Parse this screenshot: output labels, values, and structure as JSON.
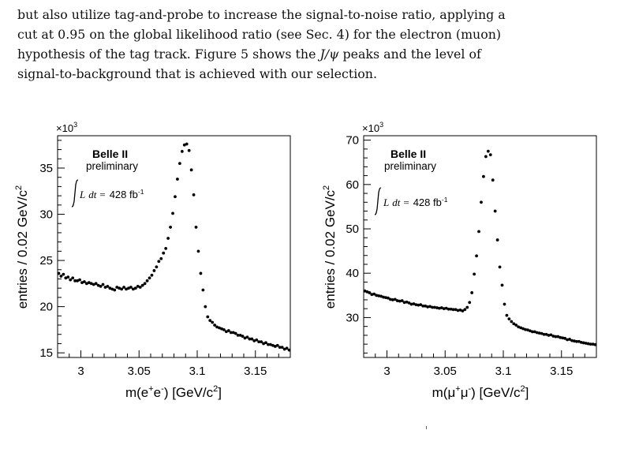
{
  "text": {
    "line1": "but also utilize tag-and-probe to increase the signal-to-noise ratio, applying a",
    "line2": "cut at 0.95 on the global likelihood ratio (see Sec. 4) for the electron (muon)",
    "line3_a": "hypothesis of the tag track. Figure 5 shows the ",
    "line3_jpsi": "J/ψ",
    "line3_b": " peaks and the level of",
    "line4": "signal-to-background that is achieved with our selection."
  },
  "chart_data": [
    {
      "type": "scatter",
      "title": "",
      "exponent_label": "×10",
      "exponent_sup": "3",
      "ylabel_main": "entries / 0.02 GeV/c",
      "ylabel_sup": "2",
      "xlabel_main": "m(e",
      "xlabel_sup1": "+",
      "xlabel_mid": "e",
      "xlabel_sup2": "-",
      "xlabel_end": ") [GeV/c",
      "xlabel_sup3": "2",
      "xlabel_close": "]",
      "experiment": "Belle II",
      "status": "preliminary",
      "lumi_L": "L",
      "lumi_dt": "dt",
      "lumi_eq": "=",
      "lumi_value": "428 fb",
      "lumi_sup": "-1",
      "xlim": [
        2.98,
        3.18
      ],
      "ylim": [
        14.5,
        38.5
      ],
      "xticks": [
        "3",
        "3.05",
        "3.1",
        "3.15"
      ],
      "xtick_values": [
        3.0,
        3.05,
        3.1,
        3.15
      ],
      "yticks": [
        "15",
        "20",
        "25",
        "30",
        "35"
      ],
      "ytick_values": [
        15,
        20,
        25,
        30,
        35
      ],
      "x": [
        2.981,
        2.983,
        2.985,
        2.987,
        2.989,
        2.991,
        2.993,
        2.995,
        2.997,
        2.999,
        3.001,
        3.003,
        3.005,
        3.007,
        3.009,
        3.011,
        3.013,
        3.015,
        3.017,
        3.019,
        3.021,
        3.023,
        3.025,
        3.027,
        3.029,
        3.031,
        3.033,
        3.035,
        3.037,
        3.039,
        3.041,
        3.043,
        3.045,
        3.047,
        3.049,
        3.051,
        3.053,
        3.055,
        3.057,
        3.059,
        3.061,
        3.063,
        3.065,
        3.067,
        3.069,
        3.071,
        3.073,
        3.075,
        3.077,
        3.079,
        3.081,
        3.083,
        3.085,
        3.087,
        3.089,
        3.091,
        3.093,
        3.095,
        3.097,
        3.099,
        3.101,
        3.103,
        3.105,
        3.107,
        3.109,
        3.111,
        3.113,
        3.115,
        3.117,
        3.119,
        3.121,
        3.123,
        3.125,
        3.127,
        3.129,
        3.131,
        3.133,
        3.135,
        3.137,
        3.139,
        3.141,
        3.143,
        3.145,
        3.147,
        3.149,
        3.151,
        3.153,
        3.155,
        3.157,
        3.159,
        3.161,
        3.163,
        3.165,
        3.167,
        3.169,
        3.171,
        3.173,
        3.175,
        3.177,
        3.179
      ],
      "y": [
        23.6,
        23.3,
        23.5,
        23.1,
        23.2,
        22.9,
        23.1,
        22.8,
        22.8,
        22.9,
        22.6,
        22.7,
        22.5,
        22.6,
        22.5,
        22.4,
        22.5,
        22.3,
        22.2,
        22.4,
        22.1,
        22.2,
        22.0,
        21.9,
        21.8,
        22.1,
        22.0,
        21.9,
        22.1,
        21.9,
        22.0,
        22.1,
        21.9,
        22.0,
        22.2,
        22.1,
        22.3,
        22.5,
        22.8,
        23.1,
        23.4,
        23.9,
        24.3,
        24.9,
        25.2,
        25.8,
        26.3,
        27.4,
        28.6,
        30.1,
        31.9,
        33.8,
        35.5,
        36.8,
        37.5,
        37.6,
        36.9,
        34.8,
        32.1,
        28.6,
        26.0,
        23.6,
        21.8,
        20.0,
        18.9,
        18.5,
        18.3,
        18.0,
        17.8,
        17.7,
        17.6,
        17.5,
        17.3,
        17.4,
        17.2,
        17.2,
        17.1,
        16.9,
        16.9,
        16.8,
        16.6,
        16.7,
        16.5,
        16.5,
        16.3,
        16.4,
        16.2,
        16.2,
        16.0,
        16.1,
        15.9,
        15.9,
        15.8,
        15.7,
        15.8,
        15.6,
        15.6,
        15.4,
        15.5,
        15.3
      ]
    },
    {
      "type": "scatter",
      "title": "",
      "exponent_label": "×10",
      "exponent_sup": "3",
      "ylabel_main": "entries / 0.02 GeV/c",
      "ylabel_sup": "2",
      "xlabel_main": "m(μ",
      "xlabel_sup1": "+",
      "xlabel_mid": "μ",
      "xlabel_sup2": "-",
      "xlabel_end": ") [GeV/c",
      "xlabel_sup3": "2",
      "xlabel_close": "]",
      "experiment": "Belle II",
      "status": "preliminary",
      "lumi_L": "L",
      "lumi_dt": "dt",
      "lumi_eq": "=",
      "lumi_value": "428 fb",
      "lumi_sup": "-1",
      "xlim": [
        2.98,
        3.18
      ],
      "ylim": [
        21,
        71
      ],
      "xticks": [
        "3",
        "3.05",
        "3.1",
        "3.15"
      ],
      "xtick_values": [
        3.0,
        3.05,
        3.1,
        3.15
      ],
      "yticks": [
        "30",
        "40",
        "50",
        "60",
        "70"
      ],
      "ytick_values": [
        30,
        40,
        50,
        60,
        70
      ],
      "x": [
        2.981,
        2.983,
        2.985,
        2.987,
        2.989,
        2.991,
        2.993,
        2.995,
        2.997,
        2.999,
        3.001,
        3.003,
        3.005,
        3.007,
        3.009,
        3.011,
        3.013,
        3.015,
        3.017,
        3.019,
        3.021,
        3.023,
        3.025,
        3.027,
        3.029,
        3.031,
        3.033,
        3.035,
        3.037,
        3.039,
        3.041,
        3.043,
        3.045,
        3.047,
        3.049,
        3.051,
        3.053,
        3.055,
        3.057,
        3.059,
        3.061,
        3.063,
        3.065,
        3.067,
        3.069,
        3.071,
        3.073,
        3.075,
        3.077,
        3.079,
        3.081,
        3.083,
        3.085,
        3.087,
        3.089,
        3.091,
        3.093,
        3.095,
        3.097,
        3.099,
        3.101,
        3.103,
        3.105,
        3.107,
        3.109,
        3.111,
        3.113,
        3.115,
        3.117,
        3.119,
        3.121,
        3.123,
        3.125,
        3.127,
        3.129,
        3.131,
        3.133,
        3.135,
        3.137,
        3.139,
        3.141,
        3.143,
        3.145,
        3.147,
        3.149,
        3.151,
        3.153,
        3.155,
        3.157,
        3.159,
        3.161,
        3.163,
        3.165,
        3.167,
        3.169,
        3.171,
        3.173,
        3.175,
        3.177,
        3.179
      ],
      "y": [
        36.0,
        35.8,
        35.6,
        35.2,
        35.3,
        35.0,
        34.9,
        34.8,
        34.6,
        34.5,
        34.4,
        34.1,
        34.0,
        34.1,
        33.8,
        33.7,
        33.8,
        33.4,
        33.5,
        33.3,
        33.0,
        33.1,
        32.9,
        32.8,
        32.9,
        32.6,
        32.6,
        32.4,
        32.5,
        32.3,
        32.3,
        32.2,
        32.1,
        32.2,
        32.0,
        32.1,
        31.9,
        31.9,
        31.8,
        31.8,
        31.6,
        31.7,
        31.5,
        31.8,
        32.3,
        33.4,
        35.6,
        39.8,
        43.9,
        49.4,
        56.0,
        61.8,
        66.3,
        67.5,
        66.7,
        61.0,
        54.0,
        47.5,
        41.4,
        37.3,
        33.0,
        30.5,
        29.7,
        29.1,
        28.6,
        28.3,
        27.9,
        27.7,
        27.5,
        27.3,
        27.2,
        27.0,
        26.8,
        26.8,
        26.6,
        26.5,
        26.4,
        26.2,
        26.2,
        26.0,
        26.1,
        25.8,
        25.7,
        25.7,
        25.5,
        25.4,
        25.3,
        25.0,
        25.1,
        24.8,
        24.7,
        24.6,
        24.6,
        24.4,
        24.3,
        24.2,
        24.1,
        24.0,
        24.0,
        23.9
      ]
    }
  ]
}
